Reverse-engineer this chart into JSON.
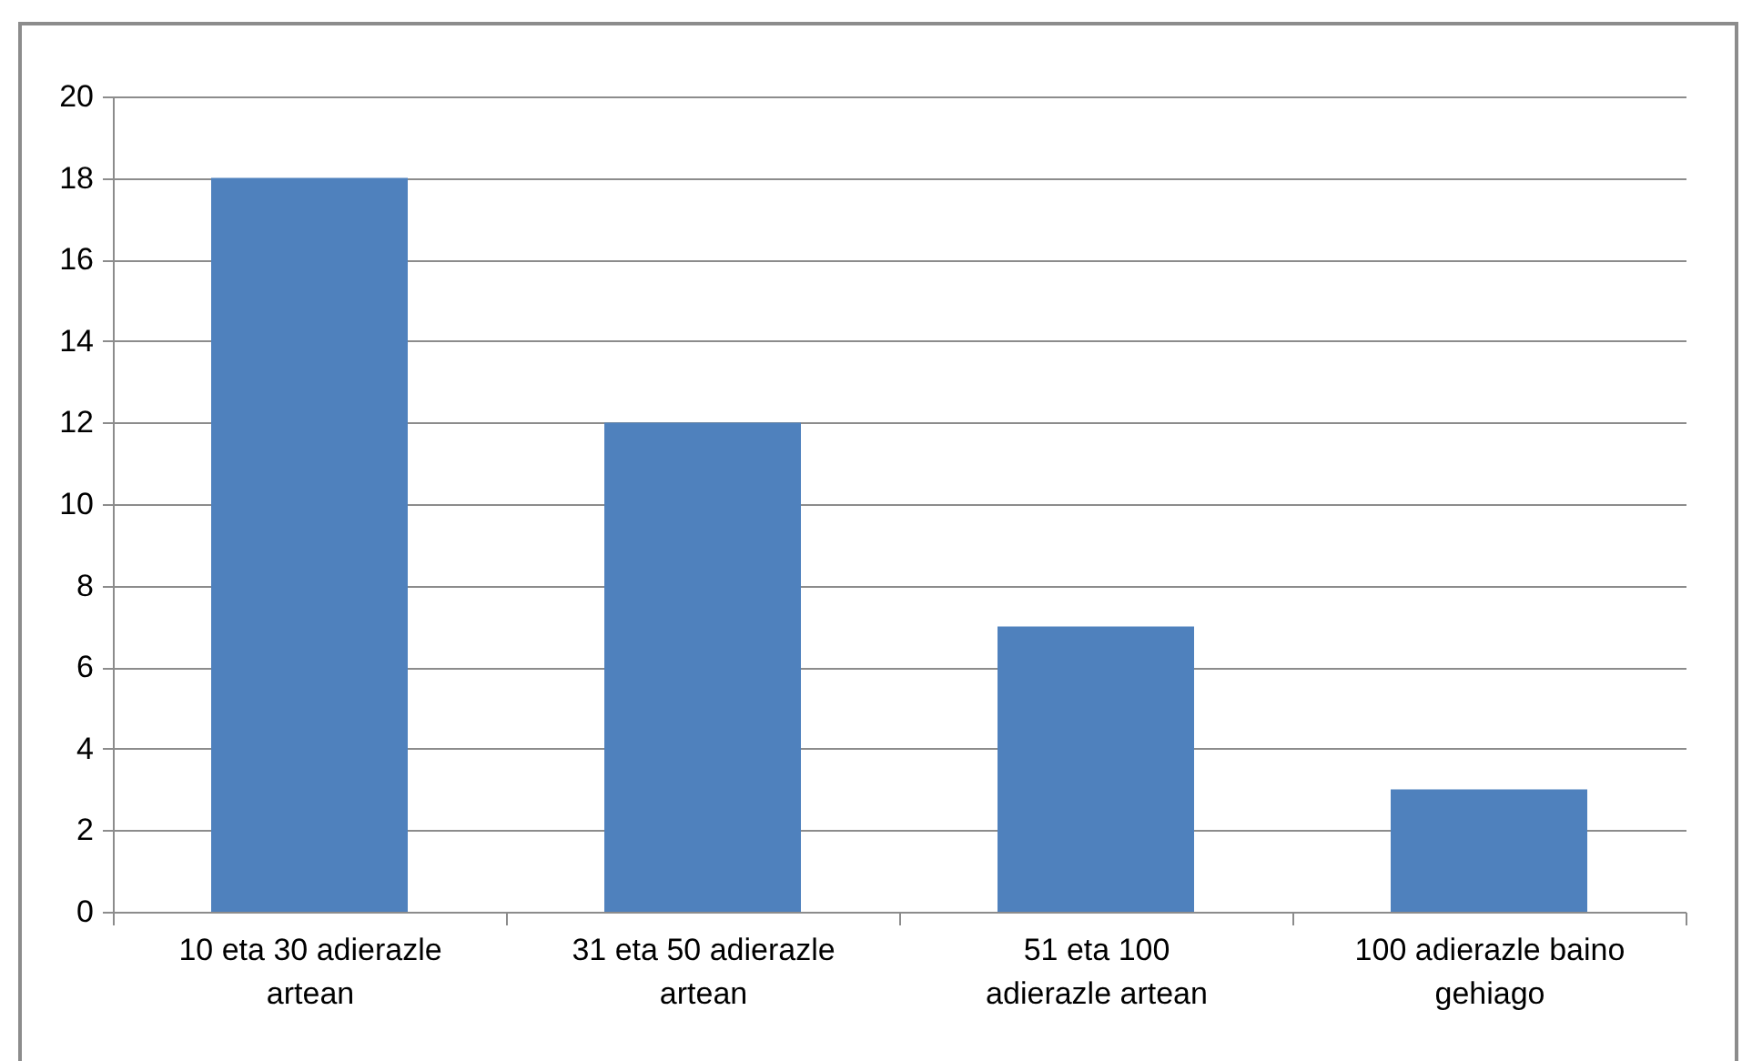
{
  "chart_data": {
    "type": "bar",
    "categories": [
      "10 eta 30 adierazle artean",
      "31 eta 50 adierazle artean",
      "51 eta 100 adierazle artean",
      "100 adierazle baino gehiago"
    ],
    "values": [
      18,
      12,
      7,
      3
    ],
    "color": "#4f81bd",
    "ylim": [
      0,
      20
    ],
    "yticks": [
      0,
      2,
      4,
      6,
      8,
      10,
      12,
      14,
      16,
      18,
      20
    ],
    "grid": "y"
  }
}
